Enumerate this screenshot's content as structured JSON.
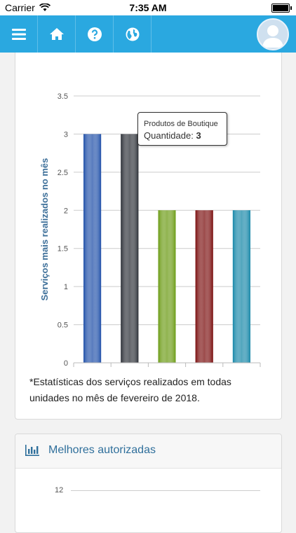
{
  "status_bar": {
    "carrier": "Carrier",
    "time": "7:35 AM"
  },
  "nav": {
    "items": [
      {
        "icon": "menu-icon"
      },
      {
        "icon": "home-icon"
      },
      {
        "icon": "help-icon"
      },
      {
        "icon": "globe-icon"
      }
    ],
    "avatar_icon": "user-avatar-icon"
  },
  "chart_card": {
    "footnote": "*Estatísticas dos serviços realizados em todas unidades no mês de fevereiro de 2018.",
    "tooltip": {
      "category": "Produtos de Boutique",
      "label": "Quantidade:",
      "value": "3"
    }
  },
  "chart_data": {
    "type": "bar",
    "ylabel": "Serviços mais realizados no mês",
    "ylim": [
      0,
      3.5
    ],
    "yticks": [
      "0",
      "0.5",
      "1",
      "1.5",
      "2",
      "2.5",
      "3",
      "3.5"
    ],
    "categories": [
      "",
      "Produtos de Boutique",
      "",
      "",
      ""
    ],
    "values": [
      3,
      3,
      2,
      2,
      2
    ],
    "colors": [
      "#1f4fa8",
      "#2b2f36",
      "#6a9a12",
      "#7a0d0d",
      "#1687a8"
    ],
    "grid": true
  },
  "card2": {
    "title": "Melhores autorizadas",
    "icon": "bar-chart-icon",
    "first_tick": "12"
  }
}
